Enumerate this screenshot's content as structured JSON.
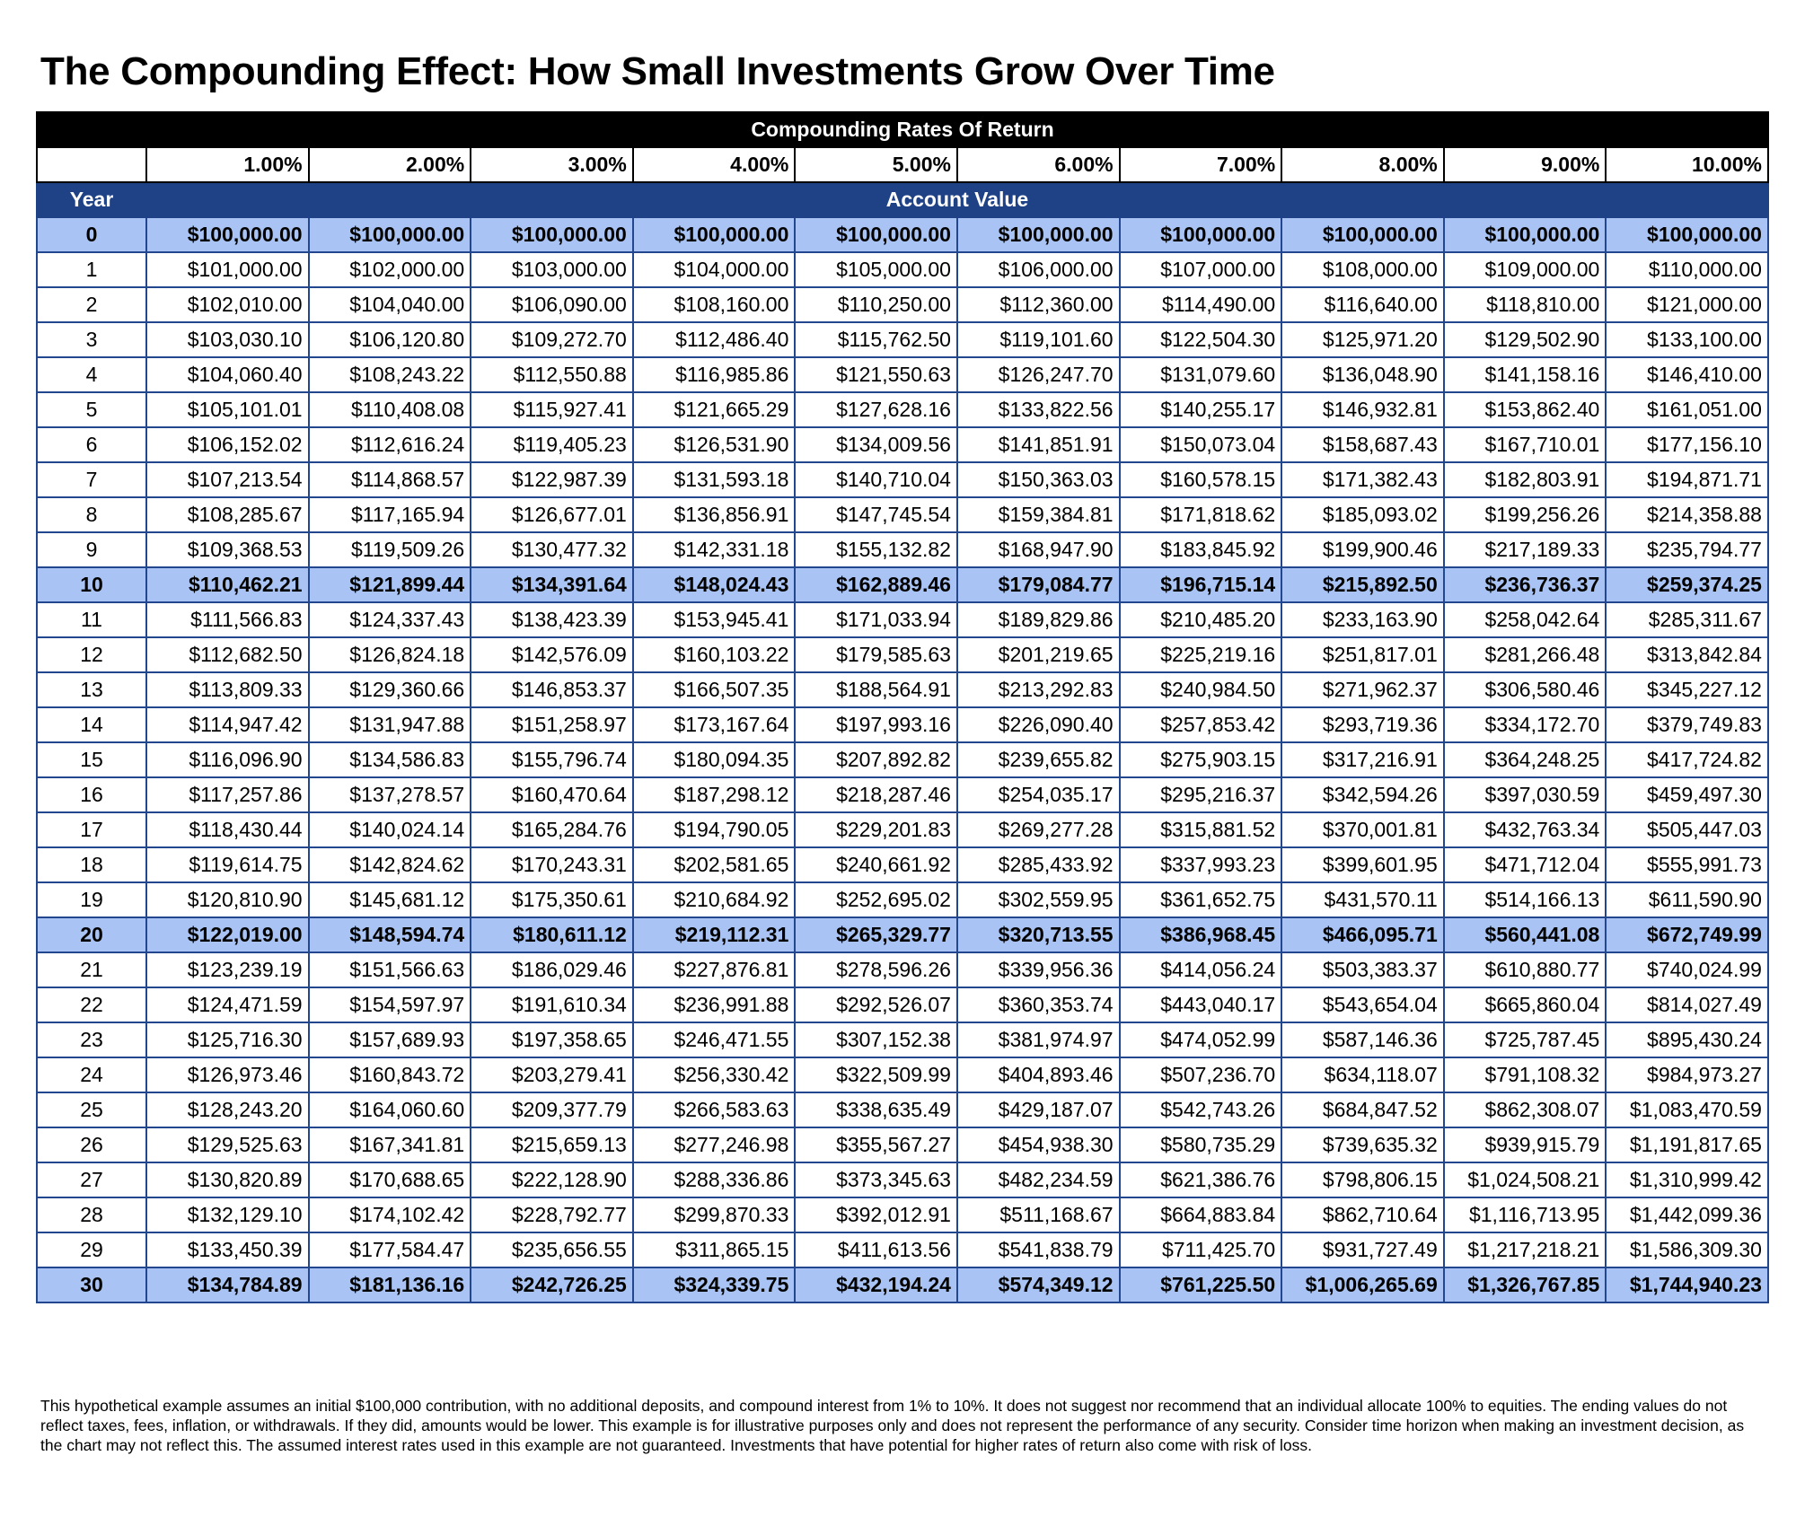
{
  "title": "The Compounding Effect: How Small Investments Grow Over Time",
  "colors": {
    "header_black": "#000000",
    "header_blue": "#1f4286",
    "highlight": "#a9c4f4",
    "border": "#23478f"
  },
  "chart_data": {
    "type": "table",
    "super_header": "Compounding Rates Of Return",
    "year_label": "Year",
    "value_label": "Account Value",
    "rates": [
      "1.00%",
      "2.00%",
      "3.00%",
      "4.00%",
      "5.00%",
      "6.00%",
      "7.00%",
      "8.00%",
      "9.00%",
      "10.00%"
    ],
    "rows": [
      {
        "year": "0",
        "highlight": true,
        "values": [
          "$100,000.00",
          "$100,000.00",
          "$100,000.00",
          "$100,000.00",
          "$100,000.00",
          "$100,000.00",
          "$100,000.00",
          "$100,000.00",
          "$100,000.00",
          "$100,000.00"
        ]
      },
      {
        "year": "1",
        "highlight": false,
        "values": [
          "$101,000.00",
          "$102,000.00",
          "$103,000.00",
          "$104,000.00",
          "$105,000.00",
          "$106,000.00",
          "$107,000.00",
          "$108,000.00",
          "$109,000.00",
          "$110,000.00"
        ]
      },
      {
        "year": "2",
        "highlight": false,
        "values": [
          "$102,010.00",
          "$104,040.00",
          "$106,090.00",
          "$108,160.00",
          "$110,250.00",
          "$112,360.00",
          "$114,490.00",
          "$116,640.00",
          "$118,810.00",
          "$121,000.00"
        ]
      },
      {
        "year": "3",
        "highlight": false,
        "values": [
          "$103,030.10",
          "$106,120.80",
          "$109,272.70",
          "$112,486.40",
          "$115,762.50",
          "$119,101.60",
          "$122,504.30",
          "$125,971.20",
          "$129,502.90",
          "$133,100.00"
        ]
      },
      {
        "year": "4",
        "highlight": false,
        "values": [
          "$104,060.40",
          "$108,243.22",
          "$112,550.88",
          "$116,985.86",
          "$121,550.63",
          "$126,247.70",
          "$131,079.60",
          "$136,048.90",
          "$141,158.16",
          "$146,410.00"
        ]
      },
      {
        "year": "5",
        "highlight": false,
        "values": [
          "$105,101.01",
          "$110,408.08",
          "$115,927.41",
          "$121,665.29",
          "$127,628.16",
          "$133,822.56",
          "$140,255.17",
          "$146,932.81",
          "$153,862.40",
          "$161,051.00"
        ]
      },
      {
        "year": "6",
        "highlight": false,
        "values": [
          "$106,152.02",
          "$112,616.24",
          "$119,405.23",
          "$126,531.90",
          "$134,009.56",
          "$141,851.91",
          "$150,073.04",
          "$158,687.43",
          "$167,710.01",
          "$177,156.10"
        ]
      },
      {
        "year": "7",
        "highlight": false,
        "values": [
          "$107,213.54",
          "$114,868.57",
          "$122,987.39",
          "$131,593.18",
          "$140,710.04",
          "$150,363.03",
          "$160,578.15",
          "$171,382.43",
          "$182,803.91",
          "$194,871.71"
        ]
      },
      {
        "year": "8",
        "highlight": false,
        "values": [
          "$108,285.67",
          "$117,165.94",
          "$126,677.01",
          "$136,856.91",
          "$147,745.54",
          "$159,384.81",
          "$171,818.62",
          "$185,093.02",
          "$199,256.26",
          "$214,358.88"
        ]
      },
      {
        "year": "9",
        "highlight": false,
        "values": [
          "$109,368.53",
          "$119,509.26",
          "$130,477.32",
          "$142,331.18",
          "$155,132.82",
          "$168,947.90",
          "$183,845.92",
          "$199,900.46",
          "$217,189.33",
          "$235,794.77"
        ]
      },
      {
        "year": "10",
        "highlight": true,
        "values": [
          "$110,462.21",
          "$121,899.44",
          "$134,391.64",
          "$148,024.43",
          "$162,889.46",
          "$179,084.77",
          "$196,715.14",
          "$215,892.50",
          "$236,736.37",
          "$259,374.25"
        ]
      },
      {
        "year": "11",
        "highlight": false,
        "values": [
          "$111,566.83",
          "$124,337.43",
          "$138,423.39",
          "$153,945.41",
          "$171,033.94",
          "$189,829.86",
          "$210,485.20",
          "$233,163.90",
          "$258,042.64",
          "$285,311.67"
        ]
      },
      {
        "year": "12",
        "highlight": false,
        "values": [
          "$112,682.50",
          "$126,824.18",
          "$142,576.09",
          "$160,103.22",
          "$179,585.63",
          "$201,219.65",
          "$225,219.16",
          "$251,817.01",
          "$281,266.48",
          "$313,842.84"
        ]
      },
      {
        "year": "13",
        "highlight": false,
        "values": [
          "$113,809.33",
          "$129,360.66",
          "$146,853.37",
          "$166,507.35",
          "$188,564.91",
          "$213,292.83",
          "$240,984.50",
          "$271,962.37",
          "$306,580.46",
          "$345,227.12"
        ]
      },
      {
        "year": "14",
        "highlight": false,
        "values": [
          "$114,947.42",
          "$131,947.88",
          "$151,258.97",
          "$173,167.64",
          "$197,993.16",
          "$226,090.40",
          "$257,853.42",
          "$293,719.36",
          "$334,172.70",
          "$379,749.83"
        ]
      },
      {
        "year": "15",
        "highlight": false,
        "values": [
          "$116,096.90",
          "$134,586.83",
          "$155,796.74",
          "$180,094.35",
          "$207,892.82",
          "$239,655.82",
          "$275,903.15",
          "$317,216.91",
          "$364,248.25",
          "$417,724.82"
        ]
      },
      {
        "year": "16",
        "highlight": false,
        "values": [
          "$117,257.86",
          "$137,278.57",
          "$160,470.64",
          "$187,298.12",
          "$218,287.46",
          "$254,035.17",
          "$295,216.37",
          "$342,594.26",
          "$397,030.59",
          "$459,497.30"
        ]
      },
      {
        "year": "17",
        "highlight": false,
        "values": [
          "$118,430.44",
          "$140,024.14",
          "$165,284.76",
          "$194,790.05",
          "$229,201.83",
          "$269,277.28",
          "$315,881.52",
          "$370,001.81",
          "$432,763.34",
          "$505,447.03"
        ]
      },
      {
        "year": "18",
        "highlight": false,
        "values": [
          "$119,614.75",
          "$142,824.62",
          "$170,243.31",
          "$202,581.65",
          "$240,661.92",
          "$285,433.92",
          "$337,993.23",
          "$399,601.95",
          "$471,712.04",
          "$555,991.73"
        ]
      },
      {
        "year": "19",
        "highlight": false,
        "values": [
          "$120,810.90",
          "$145,681.12",
          "$175,350.61",
          "$210,684.92",
          "$252,695.02",
          "$302,559.95",
          "$361,652.75",
          "$431,570.11",
          "$514,166.13",
          "$611,590.90"
        ]
      },
      {
        "year": "20",
        "highlight": true,
        "values": [
          "$122,019.00",
          "$148,594.74",
          "$180,611.12",
          "$219,112.31",
          "$265,329.77",
          "$320,713.55",
          "$386,968.45",
          "$466,095.71",
          "$560,441.08",
          "$672,749.99"
        ]
      },
      {
        "year": "21",
        "highlight": false,
        "values": [
          "$123,239.19",
          "$151,566.63",
          "$186,029.46",
          "$227,876.81",
          "$278,596.26",
          "$339,956.36",
          "$414,056.24",
          "$503,383.37",
          "$610,880.77",
          "$740,024.99"
        ]
      },
      {
        "year": "22",
        "highlight": false,
        "values": [
          "$124,471.59",
          "$154,597.97",
          "$191,610.34",
          "$236,991.88",
          "$292,526.07",
          "$360,353.74",
          "$443,040.17",
          "$543,654.04",
          "$665,860.04",
          "$814,027.49"
        ]
      },
      {
        "year": "23",
        "highlight": false,
        "values": [
          "$125,716.30",
          "$157,689.93",
          "$197,358.65",
          "$246,471.55",
          "$307,152.38",
          "$381,974.97",
          "$474,052.99",
          "$587,146.36",
          "$725,787.45",
          "$895,430.24"
        ]
      },
      {
        "year": "24",
        "highlight": false,
        "values": [
          "$126,973.46",
          "$160,843.72",
          "$203,279.41",
          "$256,330.42",
          "$322,509.99",
          "$404,893.46",
          "$507,236.70",
          "$634,118.07",
          "$791,108.32",
          "$984,973.27"
        ]
      },
      {
        "year": "25",
        "highlight": false,
        "values": [
          "$128,243.20",
          "$164,060.60",
          "$209,377.79",
          "$266,583.63",
          "$338,635.49",
          "$429,187.07",
          "$542,743.26",
          "$684,847.52",
          "$862,308.07",
          "$1,083,470.59"
        ]
      },
      {
        "year": "26",
        "highlight": false,
        "values": [
          "$129,525.63",
          "$167,341.81",
          "$215,659.13",
          "$277,246.98",
          "$355,567.27",
          "$454,938.30",
          "$580,735.29",
          "$739,635.32",
          "$939,915.79",
          "$1,191,817.65"
        ]
      },
      {
        "year": "27",
        "highlight": false,
        "values": [
          "$130,820.89",
          "$170,688.65",
          "$222,128.90",
          "$288,336.86",
          "$373,345.63",
          "$482,234.59",
          "$621,386.76",
          "$798,806.15",
          "$1,024,508.21",
          "$1,310,999.42"
        ]
      },
      {
        "year": "28",
        "highlight": false,
        "values": [
          "$132,129.10",
          "$174,102.42",
          "$228,792.77",
          "$299,870.33",
          "$392,012.91",
          "$511,168.67",
          "$664,883.84",
          "$862,710.64",
          "$1,116,713.95",
          "$1,442,099.36"
        ]
      },
      {
        "year": "29",
        "highlight": false,
        "values": [
          "$133,450.39",
          "$177,584.47",
          "$235,656.55",
          "$311,865.15",
          "$411,613.56",
          "$541,838.79",
          "$711,425.70",
          "$931,727.49",
          "$1,217,218.21",
          "$1,586,309.30"
        ]
      },
      {
        "year": "30",
        "highlight": true,
        "values": [
          "$134,784.89",
          "$181,136.16",
          "$242,726.25",
          "$324,339.75",
          "$432,194.24",
          "$574,349.12",
          "$761,225.50",
          "$1,006,265.69",
          "$1,326,767.85",
          "$1,744,940.23"
        ]
      }
    ]
  },
  "disclaimer": "This hypothetical example assumes an initial $100,000 contribution, with no additional deposits, and compound interest from 1% to 10%. It does not suggest nor recommend that an individual allocate 100% to equities. The ending values do not reflect taxes, fees, inflation, or withdrawals. If they did, amounts would be lower. This example is for illustrative purposes only and does not represent the performance of any security. Consider time horizon when making an investment decision, as the chart may not reflect this. The assumed interest rates used in this example are not guaranteed. Investments that have potential for higher rates of return also come with risk of loss."
}
